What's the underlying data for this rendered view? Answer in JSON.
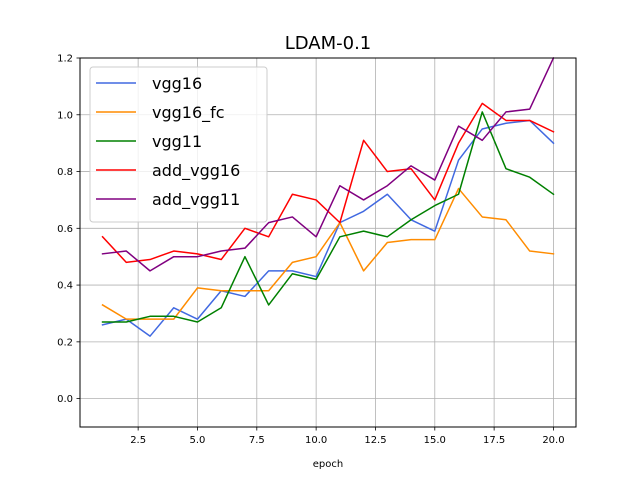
{
  "chart_data": {
    "type": "line",
    "title": "LDAM-0.1",
    "xlabel": "epoch",
    "ylabel": "",
    "xlim": [
      0.05,
      20.95
    ],
    "ylim": [
      -0.1,
      1.2
    ],
    "xticks": [
      2.5,
      5.0,
      7.5,
      10.0,
      12.5,
      15.0,
      17.5,
      20.0
    ],
    "xtick_labels": [
      "2.5",
      "5.0",
      "7.5",
      "10.0",
      "12.5",
      "15.0",
      "17.5",
      "20.0"
    ],
    "yticks": [
      0.0,
      0.2,
      0.4,
      0.6,
      0.8,
      1.0,
      1.2
    ],
    "ytick_labels": [
      "0.0",
      "0.2",
      "0.4",
      "0.6",
      "0.8",
      "1.0",
      "1.2"
    ],
    "grid": true,
    "legend_position": "top-left",
    "x": [
      1,
      2,
      3,
      4,
      5,
      6,
      7,
      8,
      9,
      10,
      11,
      12,
      13,
      14,
      15,
      16,
      17,
      18,
      19,
      20
    ],
    "series": [
      {
        "name": "vgg16",
        "color": "#4169e1",
        "values": [
          0.26,
          0.28,
          0.22,
          0.32,
          0.28,
          0.38,
          0.36,
          0.45,
          0.45,
          0.43,
          0.62,
          0.66,
          0.72,
          0.63,
          0.59,
          0.84,
          0.95,
          0.97,
          0.98,
          0.9
        ]
      },
      {
        "name": "vgg16_fc",
        "color": "#ff8c00",
        "values": [
          0.33,
          0.28,
          0.28,
          0.28,
          0.39,
          0.38,
          0.38,
          0.38,
          0.48,
          0.5,
          0.62,
          0.45,
          0.55,
          0.56,
          0.56,
          0.74,
          0.64,
          0.63,
          0.52,
          0.51
        ]
      },
      {
        "name": "vgg11",
        "color": "#008000",
        "values": [
          0.27,
          0.27,
          0.29,
          0.29,
          0.27,
          0.32,
          0.5,
          0.33,
          0.44,
          0.42,
          0.57,
          0.59,
          0.57,
          0.63,
          0.68,
          0.72,
          1.01,
          0.81,
          0.78,
          0.72
        ]
      },
      {
        "name": "add_vgg16",
        "color": "#ff0000",
        "values": [
          0.57,
          0.48,
          0.49,
          0.52,
          0.51,
          0.49,
          0.6,
          0.57,
          0.72,
          0.7,
          0.62,
          0.91,
          0.8,
          0.81,
          0.7,
          0.9,
          1.04,
          0.98,
          0.98,
          0.94
        ]
      },
      {
        "name": "add_vgg11",
        "color": "#800080",
        "values": [
          0.51,
          0.52,
          0.45,
          0.5,
          0.5,
          0.52,
          0.53,
          0.62,
          0.64,
          0.57,
          0.75,
          0.7,
          0.75,
          0.82,
          0.77,
          0.96,
          0.91,
          1.01,
          1.02,
          1.2
        ]
      }
    ]
  }
}
